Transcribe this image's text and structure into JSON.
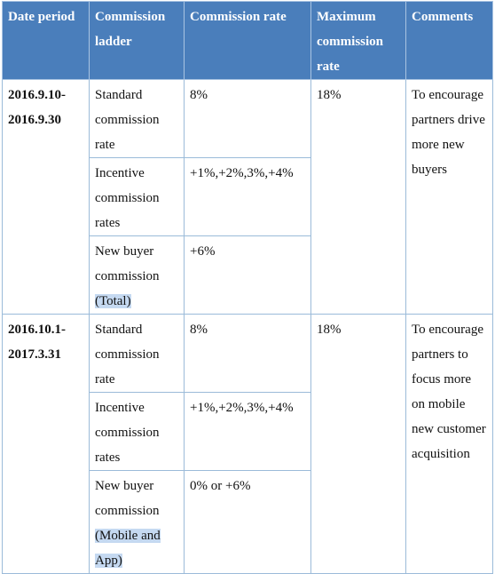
{
  "table": {
    "header": [
      "Date period",
      "Commission ladder",
      "Commission rate",
      "Maximum commission rate",
      "Comments"
    ],
    "groups": [
      {
        "date": "2016.9.10-2016.9.30",
        "max_rate": "18%",
        "comments": "To encourage partners drive more new buyers",
        "rows": [
          {
            "ladder": "Standard commission rate",
            "rate": "8%"
          },
          {
            "ladder": "Incentive commission rates",
            "rate": "+1%,+2%,3%,+4%"
          },
          {
            "ladder": "New buyer commission",
            "ladder_note": "(Total)",
            "rate": "+6%"
          }
        ]
      },
      {
        "date": "2016.10.1-2017.3.31",
        "max_rate": "18%",
        "comments": "To encourage partners to focus more on mobile new customer acquisition",
        "rows": [
          {
            "ladder": "Standard commission rate",
            "rate": "8%"
          },
          {
            "ladder": "Incentive commission rates",
            "rate": "+1%,+2%,3%,+4%"
          },
          {
            "ladder": "New buyer commission",
            "ladder_note": "(Mobile and App)",
            "rate": "0% or +6%"
          }
        ]
      }
    ]
  }
}
